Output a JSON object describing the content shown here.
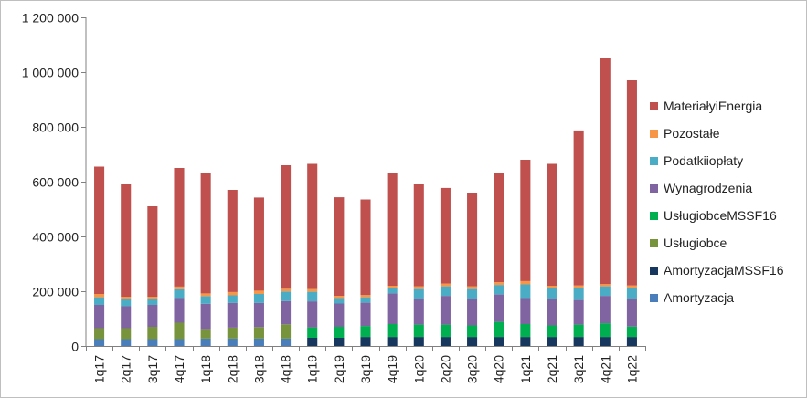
{
  "chart_data": {
    "type": "bar",
    "stacked": true,
    "categories": [
      "1q17",
      "2q17",
      "3q17",
      "4q17",
      "1q18",
      "2q18",
      "3q18",
      "4q18",
      "1q19",
      "2q19",
      "3q19",
      "4q19",
      "1q20",
      "2q20",
      "3q20",
      "4q20",
      "1q21",
      "2q21",
      "3q21",
      "4q21",
      "1q22"
    ],
    "ylim": [
      0,
      1200000
    ],
    "yticks": [
      0,
      200000,
      400000,
      600000,
      800000,
      1000000,
      1200000
    ],
    "ytick_labels": [
      "0",
      "200 000",
      "400 000",
      "600 000",
      "800 000",
      "1 000 000",
      "1 200 000"
    ],
    "grid": false,
    "legend_position": "right",
    "series": [
      {
        "name": "Amortyzacja",
        "color": "#4a7ebb",
        "values": [
          25000,
          25000,
          25000,
          25000,
          27000,
          27000,
          27000,
          27000,
          0,
          0,
          0,
          0,
          0,
          0,
          0,
          0,
          0,
          0,
          0,
          0,
          0
        ]
      },
      {
        "name": "AmortyzacjaMSSF16",
        "color": "#17375e",
        "values": [
          0,
          0,
          0,
          0,
          0,
          0,
          0,
          0,
          30000,
          30000,
          33000,
          33000,
          33000,
          33000,
          33000,
          33000,
          33000,
          33000,
          33000,
          33000,
          33000
        ]
      },
      {
        "name": "Usługiobce",
        "color": "#77933c",
        "values": [
          40000,
          40000,
          45000,
          60000,
          35000,
          40000,
          42000,
          52000,
          0,
          0,
          0,
          0,
          0,
          0,
          0,
          0,
          0,
          0,
          0,
          0,
          0
        ]
      },
      {
        "name": "UsługiobceMSSF16",
        "color": "#00b050",
        "values": [
          0,
          0,
          0,
          0,
          0,
          0,
          0,
          0,
          38000,
          40000,
          40000,
          47000,
          45000,
          45000,
          42000,
          55000,
          47000,
          42000,
          45000,
          50000,
          38000
        ]
      },
      {
        "name": "Wynagrodzenia",
        "color": "#8064a2",
        "values": [
          85000,
          80000,
          80000,
          90000,
          92000,
          90000,
          88000,
          85000,
          95000,
          85000,
          85000,
          112000,
          95000,
          105000,
          98000,
          100000,
          95000,
          95000,
          90000,
          100000,
          100000
        ]
      },
      {
        "name": "Podatkiiopłaty",
        "color": "#4bacc6",
        "values": [
          28000,
          25000,
          22000,
          32000,
          28000,
          28000,
          33000,
          35000,
          35000,
          20000,
          20000,
          20000,
          35000,
          35000,
          35000,
          35000,
          50000,
          40000,
          45000,
          35000,
          40000
        ]
      },
      {
        "name": "Pozostałe",
        "color": "#f79646",
        "values": [
          12000,
          10000,
          8000,
          10000,
          10000,
          12000,
          12000,
          10000,
          10000,
          8000,
          8000,
          8000,
          10000,
          10000,
          10000,
          10000,
          12000,
          10000,
          8000,
          8000,
          10000
        ]
      },
      {
        "name": "MateriałyiEnergia",
        "color": "#c0504d",
        "values": [
          465000,
          410000,
          330000,
          433000,
          438000,
          373000,
          340000,
          451000,
          457000,
          360000,
          349000,
          410000,
          372000,
          349000,
          342000,
          397000,
          443000,
          445000,
          566000,
          825000,
          749000
        ]
      }
    ]
  }
}
